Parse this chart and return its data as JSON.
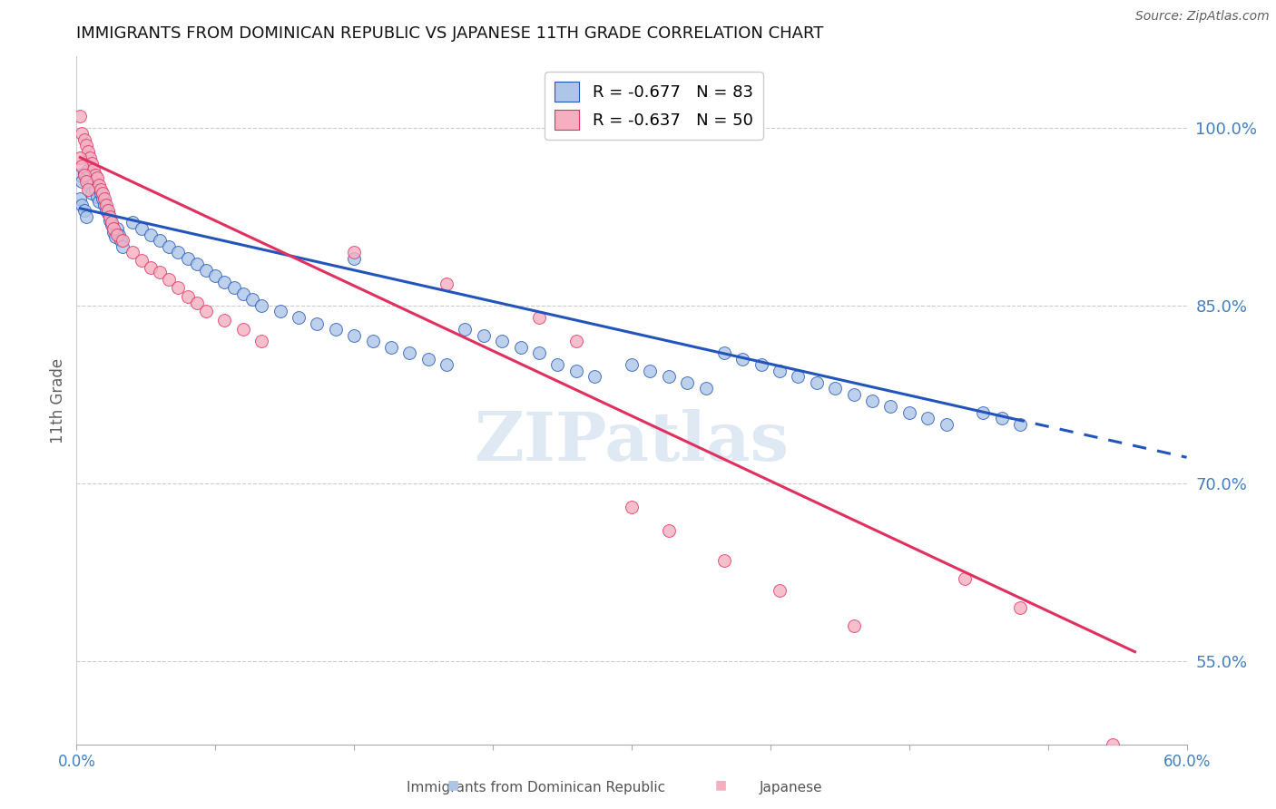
{
  "title": "IMMIGRANTS FROM DOMINICAN REPUBLIC VS JAPANESE 11TH GRADE CORRELATION CHART",
  "source": "Source: ZipAtlas.com",
  "ylabel": "11th Grade",
  "legend_blue_r": "R = -0.677",
  "legend_blue_n": "N = 83",
  "legend_pink_r": "R = -0.637",
  "legend_pink_n": "N = 50",
  "xlim": [
    0.0,
    0.6
  ],
  "ylim": [
    0.48,
    1.06
  ],
  "yticks": [
    0.55,
    0.7,
    0.85,
    1.0
  ],
  "ytick_labels": [
    "55.0%",
    "70.0%",
    "85.0%",
    "100.0%"
  ],
  "xticks": [
    0.0,
    0.075,
    0.15,
    0.225,
    0.3,
    0.375,
    0.45,
    0.525,
    0.6
  ],
  "xtick_labels_show": [
    "0.0%",
    "",
    "",
    "",
    "",
    "",
    "",
    "",
    "60.0%"
  ],
  "blue_color": "#adc6e8",
  "pink_color": "#f5afc0",
  "blue_line_color": "#2255bb",
  "pink_line_color": "#e03060",
  "axis_label_color": "#4080c0",
  "grid_color": "#cccccc",
  "background_color": "#ffffff",
  "blue_scatter": [
    [
      0.002,
      0.96
    ],
    [
      0.003,
      0.955
    ],
    [
      0.004,
      0.962
    ],
    [
      0.005,
      0.958
    ],
    [
      0.006,
      0.965
    ],
    [
      0.007,
      0.95
    ],
    [
      0.008,
      0.945
    ],
    [
      0.009,
      0.955
    ],
    [
      0.01,
      0.948
    ],
    [
      0.011,
      0.942
    ],
    [
      0.012,
      0.938
    ],
    [
      0.013,
      0.945
    ],
    [
      0.014,
      0.94
    ],
    [
      0.015,
      0.935
    ],
    [
      0.016,
      0.93
    ],
    [
      0.017,
      0.928
    ],
    [
      0.018,
      0.922
    ],
    [
      0.019,
      0.918
    ],
    [
      0.02,
      0.912
    ],
    [
      0.021,
      0.908
    ],
    [
      0.022,
      0.915
    ],
    [
      0.023,
      0.91
    ],
    [
      0.024,
      0.905
    ],
    [
      0.025,
      0.9
    ],
    [
      0.002,
      0.94
    ],
    [
      0.003,
      0.935
    ],
    [
      0.004,
      0.93
    ],
    [
      0.005,
      0.925
    ],
    [
      0.03,
      0.92
    ],
    [
      0.035,
      0.915
    ],
    [
      0.04,
      0.91
    ],
    [
      0.045,
      0.905
    ],
    [
      0.05,
      0.9
    ],
    [
      0.055,
      0.895
    ],
    [
      0.06,
      0.89
    ],
    [
      0.065,
      0.885
    ],
    [
      0.07,
      0.88
    ],
    [
      0.075,
      0.875
    ],
    [
      0.08,
      0.87
    ],
    [
      0.085,
      0.865
    ],
    [
      0.09,
      0.86
    ],
    [
      0.095,
      0.855
    ],
    [
      0.1,
      0.85
    ],
    [
      0.11,
      0.845
    ],
    [
      0.12,
      0.84
    ],
    [
      0.13,
      0.835
    ],
    [
      0.14,
      0.83
    ],
    [
      0.15,
      0.825
    ],
    [
      0.16,
      0.82
    ],
    [
      0.17,
      0.815
    ],
    [
      0.18,
      0.81
    ],
    [
      0.19,
      0.805
    ],
    [
      0.2,
      0.8
    ],
    [
      0.21,
      0.83
    ],
    [
      0.22,
      0.825
    ],
    [
      0.23,
      0.82
    ],
    [
      0.24,
      0.815
    ],
    [
      0.25,
      0.81
    ],
    [
      0.26,
      0.8
    ],
    [
      0.27,
      0.795
    ],
    [
      0.28,
      0.79
    ],
    [
      0.3,
      0.8
    ],
    [
      0.31,
      0.795
    ],
    [
      0.32,
      0.79
    ],
    [
      0.33,
      0.785
    ],
    [
      0.34,
      0.78
    ],
    [
      0.35,
      0.81
    ],
    [
      0.36,
      0.805
    ],
    [
      0.37,
      0.8
    ],
    [
      0.38,
      0.795
    ],
    [
      0.39,
      0.79
    ],
    [
      0.4,
      0.785
    ],
    [
      0.41,
      0.78
    ],
    [
      0.42,
      0.775
    ],
    [
      0.43,
      0.77
    ],
    [
      0.44,
      0.765
    ],
    [
      0.45,
      0.76
    ],
    [
      0.46,
      0.755
    ],
    [
      0.47,
      0.75
    ],
    [
      0.49,
      0.76
    ],
    [
      0.5,
      0.755
    ],
    [
      0.51,
      0.75
    ],
    [
      0.15,
      0.89
    ]
  ],
  "pink_scatter": [
    [
      0.002,
      1.01
    ],
    [
      0.003,
      0.995
    ],
    [
      0.004,
      0.99
    ],
    [
      0.005,
      0.985
    ],
    [
      0.006,
      0.98
    ],
    [
      0.007,
      0.975
    ],
    [
      0.008,
      0.97
    ],
    [
      0.009,
      0.965
    ],
    [
      0.01,
      0.96
    ],
    [
      0.011,
      0.958
    ],
    [
      0.012,
      0.952
    ],
    [
      0.013,
      0.948
    ],
    [
      0.014,
      0.945
    ],
    [
      0.015,
      0.94
    ],
    [
      0.016,
      0.935
    ],
    [
      0.017,
      0.93
    ],
    [
      0.018,
      0.925
    ],
    [
      0.019,
      0.92
    ],
    [
      0.02,
      0.915
    ],
    [
      0.022,
      0.91
    ],
    [
      0.025,
      0.905
    ],
    [
      0.03,
      0.895
    ],
    [
      0.035,
      0.888
    ],
    [
      0.04,
      0.882
    ],
    [
      0.045,
      0.878
    ],
    [
      0.05,
      0.872
    ],
    [
      0.055,
      0.865
    ],
    [
      0.06,
      0.858
    ],
    [
      0.065,
      0.852
    ],
    [
      0.07,
      0.845
    ],
    [
      0.08,
      0.838
    ],
    [
      0.09,
      0.83
    ],
    [
      0.1,
      0.82
    ],
    [
      0.002,
      0.975
    ],
    [
      0.003,
      0.968
    ],
    [
      0.004,
      0.96
    ],
    [
      0.005,
      0.955
    ],
    [
      0.006,
      0.948
    ],
    [
      0.15,
      0.895
    ],
    [
      0.2,
      0.868
    ],
    [
      0.25,
      0.84
    ],
    [
      0.27,
      0.82
    ],
    [
      0.3,
      0.68
    ],
    [
      0.32,
      0.66
    ],
    [
      0.35,
      0.635
    ],
    [
      0.38,
      0.61
    ],
    [
      0.42,
      0.58
    ],
    [
      0.48,
      0.62
    ],
    [
      0.51,
      0.595
    ],
    [
      0.56,
      0.48
    ]
  ],
  "blue_line": {
    "x0": 0.002,
    "y0": 0.932,
    "x1": 0.505,
    "y1": 0.755
  },
  "blue_line_dashed_ext": {
    "x0": 0.505,
    "y0": 0.755,
    "x1": 0.6,
    "y1": 0.722
  },
  "pink_line": {
    "x0": 0.002,
    "y0": 0.975,
    "x1": 0.572,
    "y1": 0.558
  }
}
